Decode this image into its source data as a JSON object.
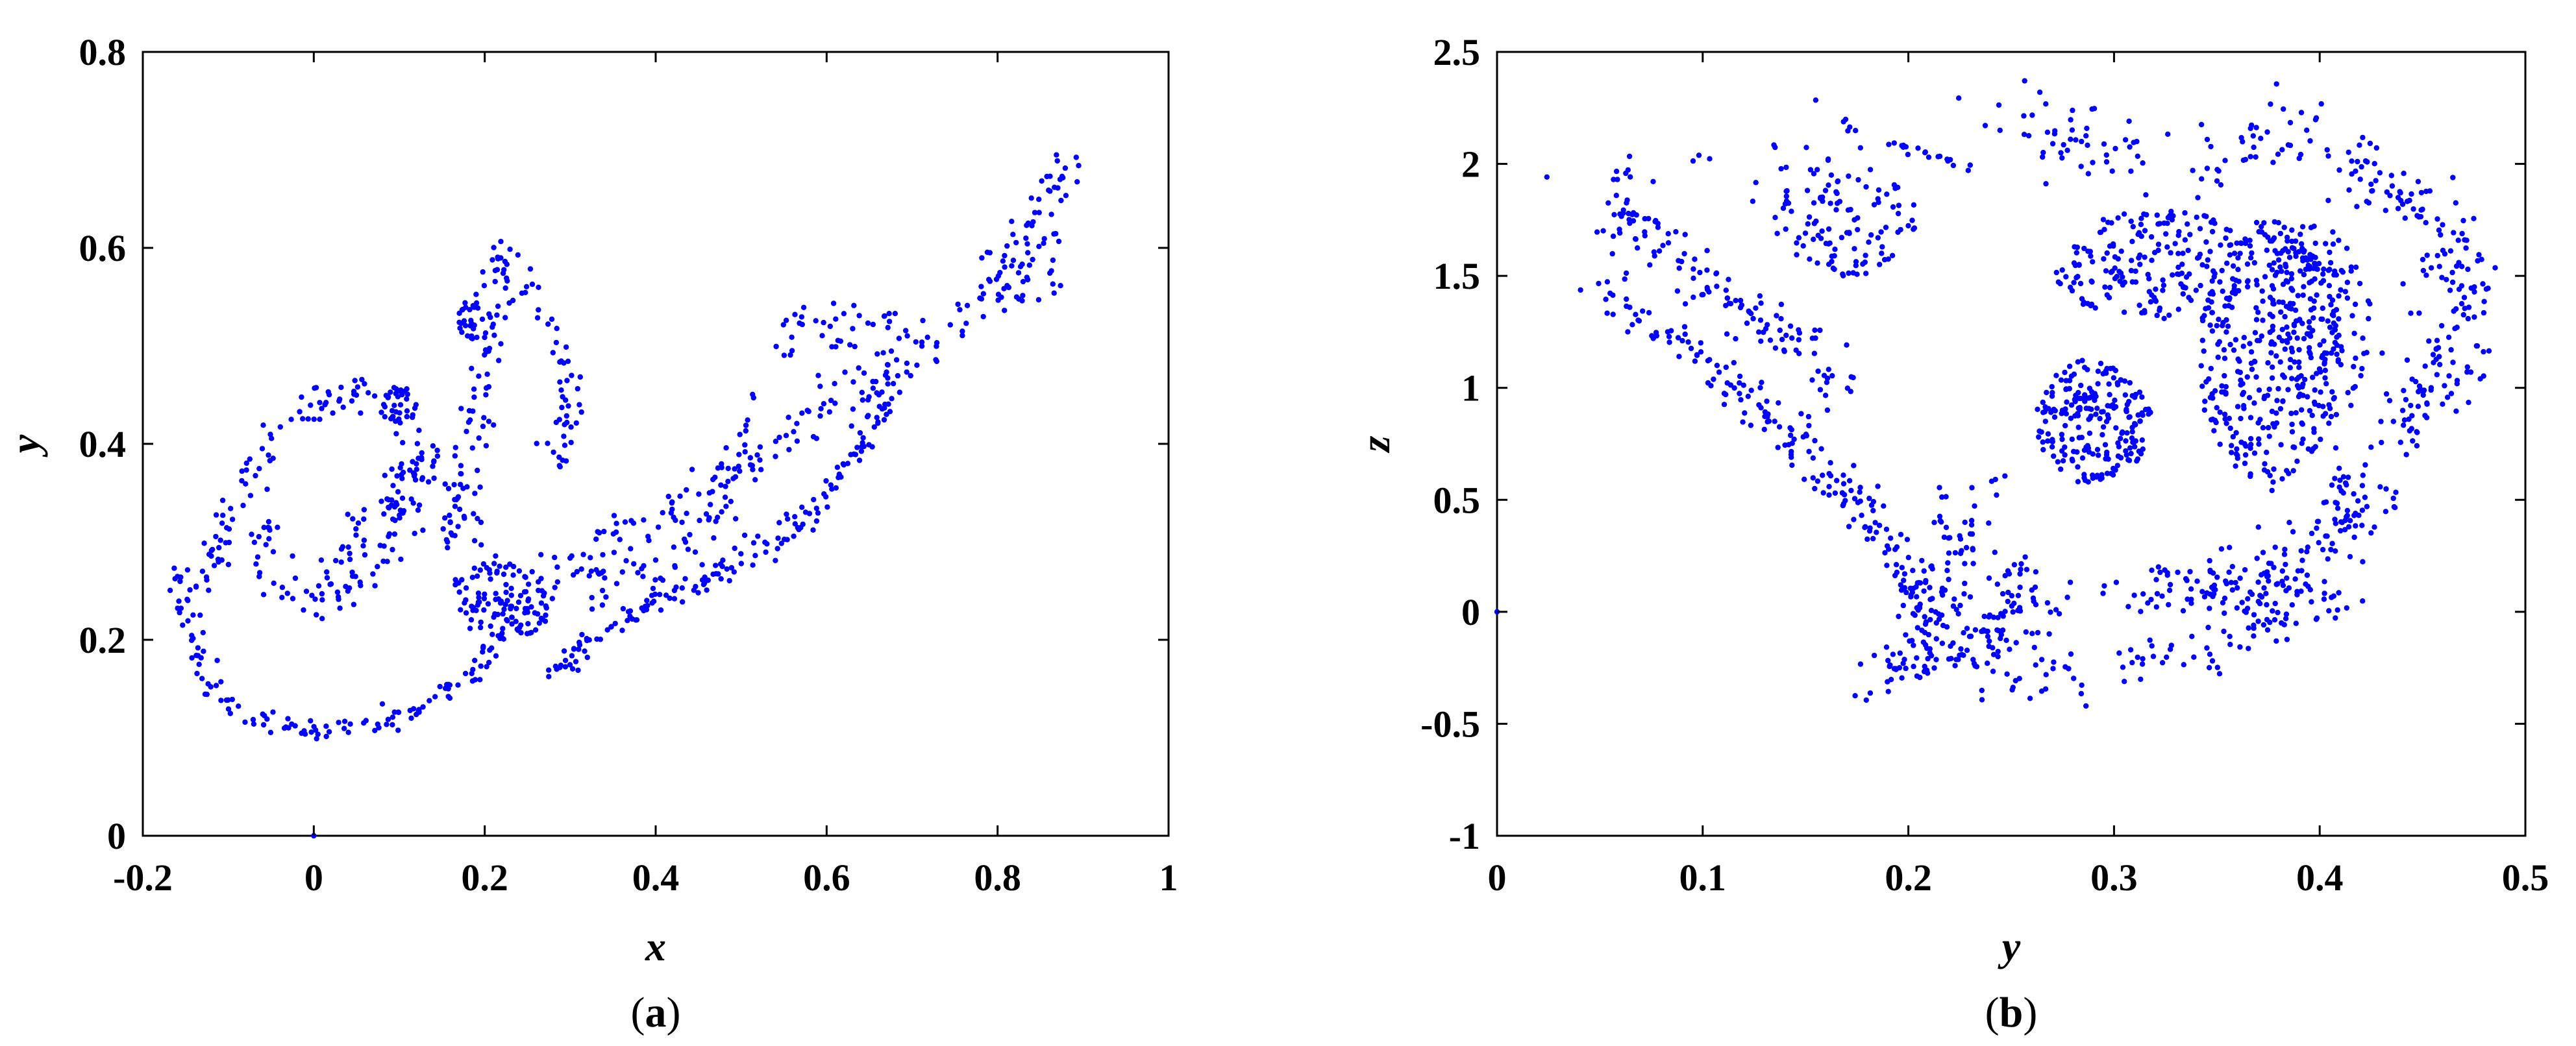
{
  "chart_data": [
    {
      "type": "scatter",
      "panel_label": "(a)",
      "panel_letter": "a",
      "xlabel": "x",
      "ylabel": "y",
      "xlim": [
        -0.2,
        1
      ],
      "ylim": [
        0,
        0.8
      ],
      "xticks": [
        -0.2,
        0,
        0.2,
        0.4,
        0.6,
        0.8,
        1
      ],
      "yticks": [
        0,
        0.2,
        0.4,
        0.6,
        0.8
      ],
      "xtick_labels": [
        "-0.2",
        "0",
        "0.2",
        "0.4",
        "0.6",
        "0.8",
        "1"
      ],
      "ytick_labels": [
        "0",
        "0.2",
        "0.4",
        "0.6",
        "0.8"
      ],
      "grid": false,
      "legend": "none",
      "marker_color": "#0000FF",
      "point_count_approx": 1000,
      "initial_point": {
        "x": 0,
        "y": 0
      },
      "clusters": [
        {
          "region": "lower arc",
          "x_range": [
            -0.12,
            0.15
          ],
          "y_range": [
            0.105,
            0.22
          ]
        },
        {
          "region": "left loop",
          "x_range": [
            -0.17,
            0.05
          ],
          "y_range": [
            0.12,
            0.42
          ]
        },
        {
          "region": "inner loop",
          "x_range": [
            0.0,
            0.22
          ],
          "y_range": [
            0.2,
            0.47
          ]
        },
        {
          "region": "upper fold",
          "x_range": [
            0.15,
            0.32
          ],
          "y_range": [
            0.38,
            0.6
          ]
        },
        {
          "region": "center band",
          "x_range": [
            0.15,
            0.3
          ],
          "y_range": [
            0.18,
            0.32
          ]
        },
        {
          "region": "lower diagonal band",
          "x_range": [
            0.27,
            0.7
          ],
          "y_range": [
            0.17,
            0.48
          ]
        },
        {
          "region": "upper diagonal band",
          "x_range": [
            0.4,
            0.9
          ],
          "y_range": [
            0.25,
            0.7
          ]
        }
      ]
    },
    {
      "type": "scatter",
      "panel_label": "(b)",
      "panel_letter": "b",
      "xlabel": "y",
      "ylabel": "z",
      "xlim": [
        0,
        0.5
      ],
      "ylim": [
        -1,
        2.5
      ],
      "xticks": [
        0,
        0.1,
        0.2,
        0.3,
        0.4,
        0.5
      ],
      "yticks": [
        -1,
        -0.5,
        0,
        0.5,
        1,
        1.5,
        2,
        2.5
      ],
      "xtick_labels": [
        "0",
        "0.1",
        "0.2",
        "0.3",
        "0.4",
        "0.5"
      ],
      "ytick_labels": [
        "-1",
        "-0.5",
        "0",
        "0.5",
        "1",
        "1.5",
        "2",
        "2.5"
      ],
      "grid": false,
      "legend": "none",
      "marker_color": "#0000FF",
      "point_count_approx": 2000,
      "initial_point": {
        "x": 0,
        "y": 0
      },
      "clusters": [
        {
          "region": "top arc",
          "x_range": [
            0.03,
            0.42
          ],
          "y_range": [
            1.8,
            2.4
          ]
        },
        {
          "region": "left diagonal band",
          "x_range": [
            0.05,
            0.22
          ],
          "y_range": [
            -0.45,
            1.5
          ]
        },
        {
          "region": "inner upper blob",
          "x_range": [
            0.14,
            0.21
          ],
          "y_range": [
            1.5,
            2.0
          ]
        },
        {
          "region": "central disc",
          "x_range": [
            0.26,
            0.31
          ],
          "y_range": [
            0.6,
            1.15
          ]
        },
        {
          "region": "right dense region",
          "x_range": [
            0.25,
            0.42
          ],
          "y_range": [
            0.5,
            1.8
          ]
        },
        {
          "region": "outer right arc",
          "x_range": [
            0.4,
            0.48
          ],
          "y_range": [
            0.2,
            1.8
          ]
        },
        {
          "region": "bottom arc",
          "x_range": [
            0.23,
            0.42
          ],
          "y_range": [
            -0.45,
            0.6
          ]
        }
      ]
    }
  ]
}
